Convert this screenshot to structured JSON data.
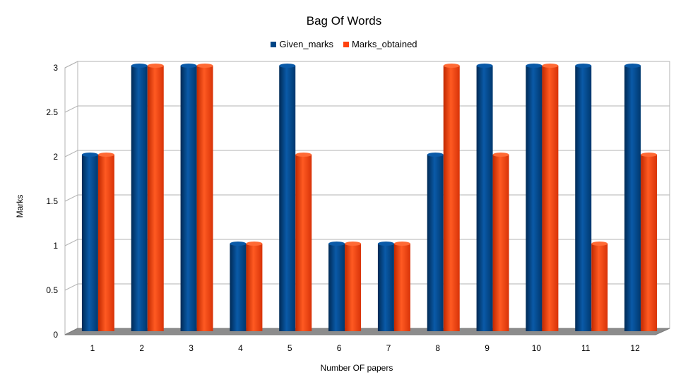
{
  "chart_data": {
    "type": "bar",
    "title": "Bag Of Words",
    "xlabel": "Number OF papers",
    "ylabel": "Marks",
    "categories": [
      "1",
      "2",
      "3",
      "4",
      "5",
      "6",
      "7",
      "8",
      "9",
      "10",
      "11",
      "12"
    ],
    "series": [
      {
        "name": "Given_marks",
        "color": "#004586",
        "values": [
          2,
          3,
          3,
          1,
          3,
          1,
          1,
          2,
          3,
          3,
          3,
          3
        ]
      },
      {
        "name": "Marks_obtained",
        "color": "#ff420e",
        "values": [
          2,
          3,
          3,
          1,
          2,
          1,
          1,
          3,
          2,
          3,
          1,
          2
        ]
      }
    ],
    "ylim": [
      0,
      3
    ],
    "yticks": [
      "0",
      "0.5",
      "1",
      "1.5",
      "2",
      "2.5",
      "3"
    ],
    "grid": true,
    "legend": "top-center"
  }
}
